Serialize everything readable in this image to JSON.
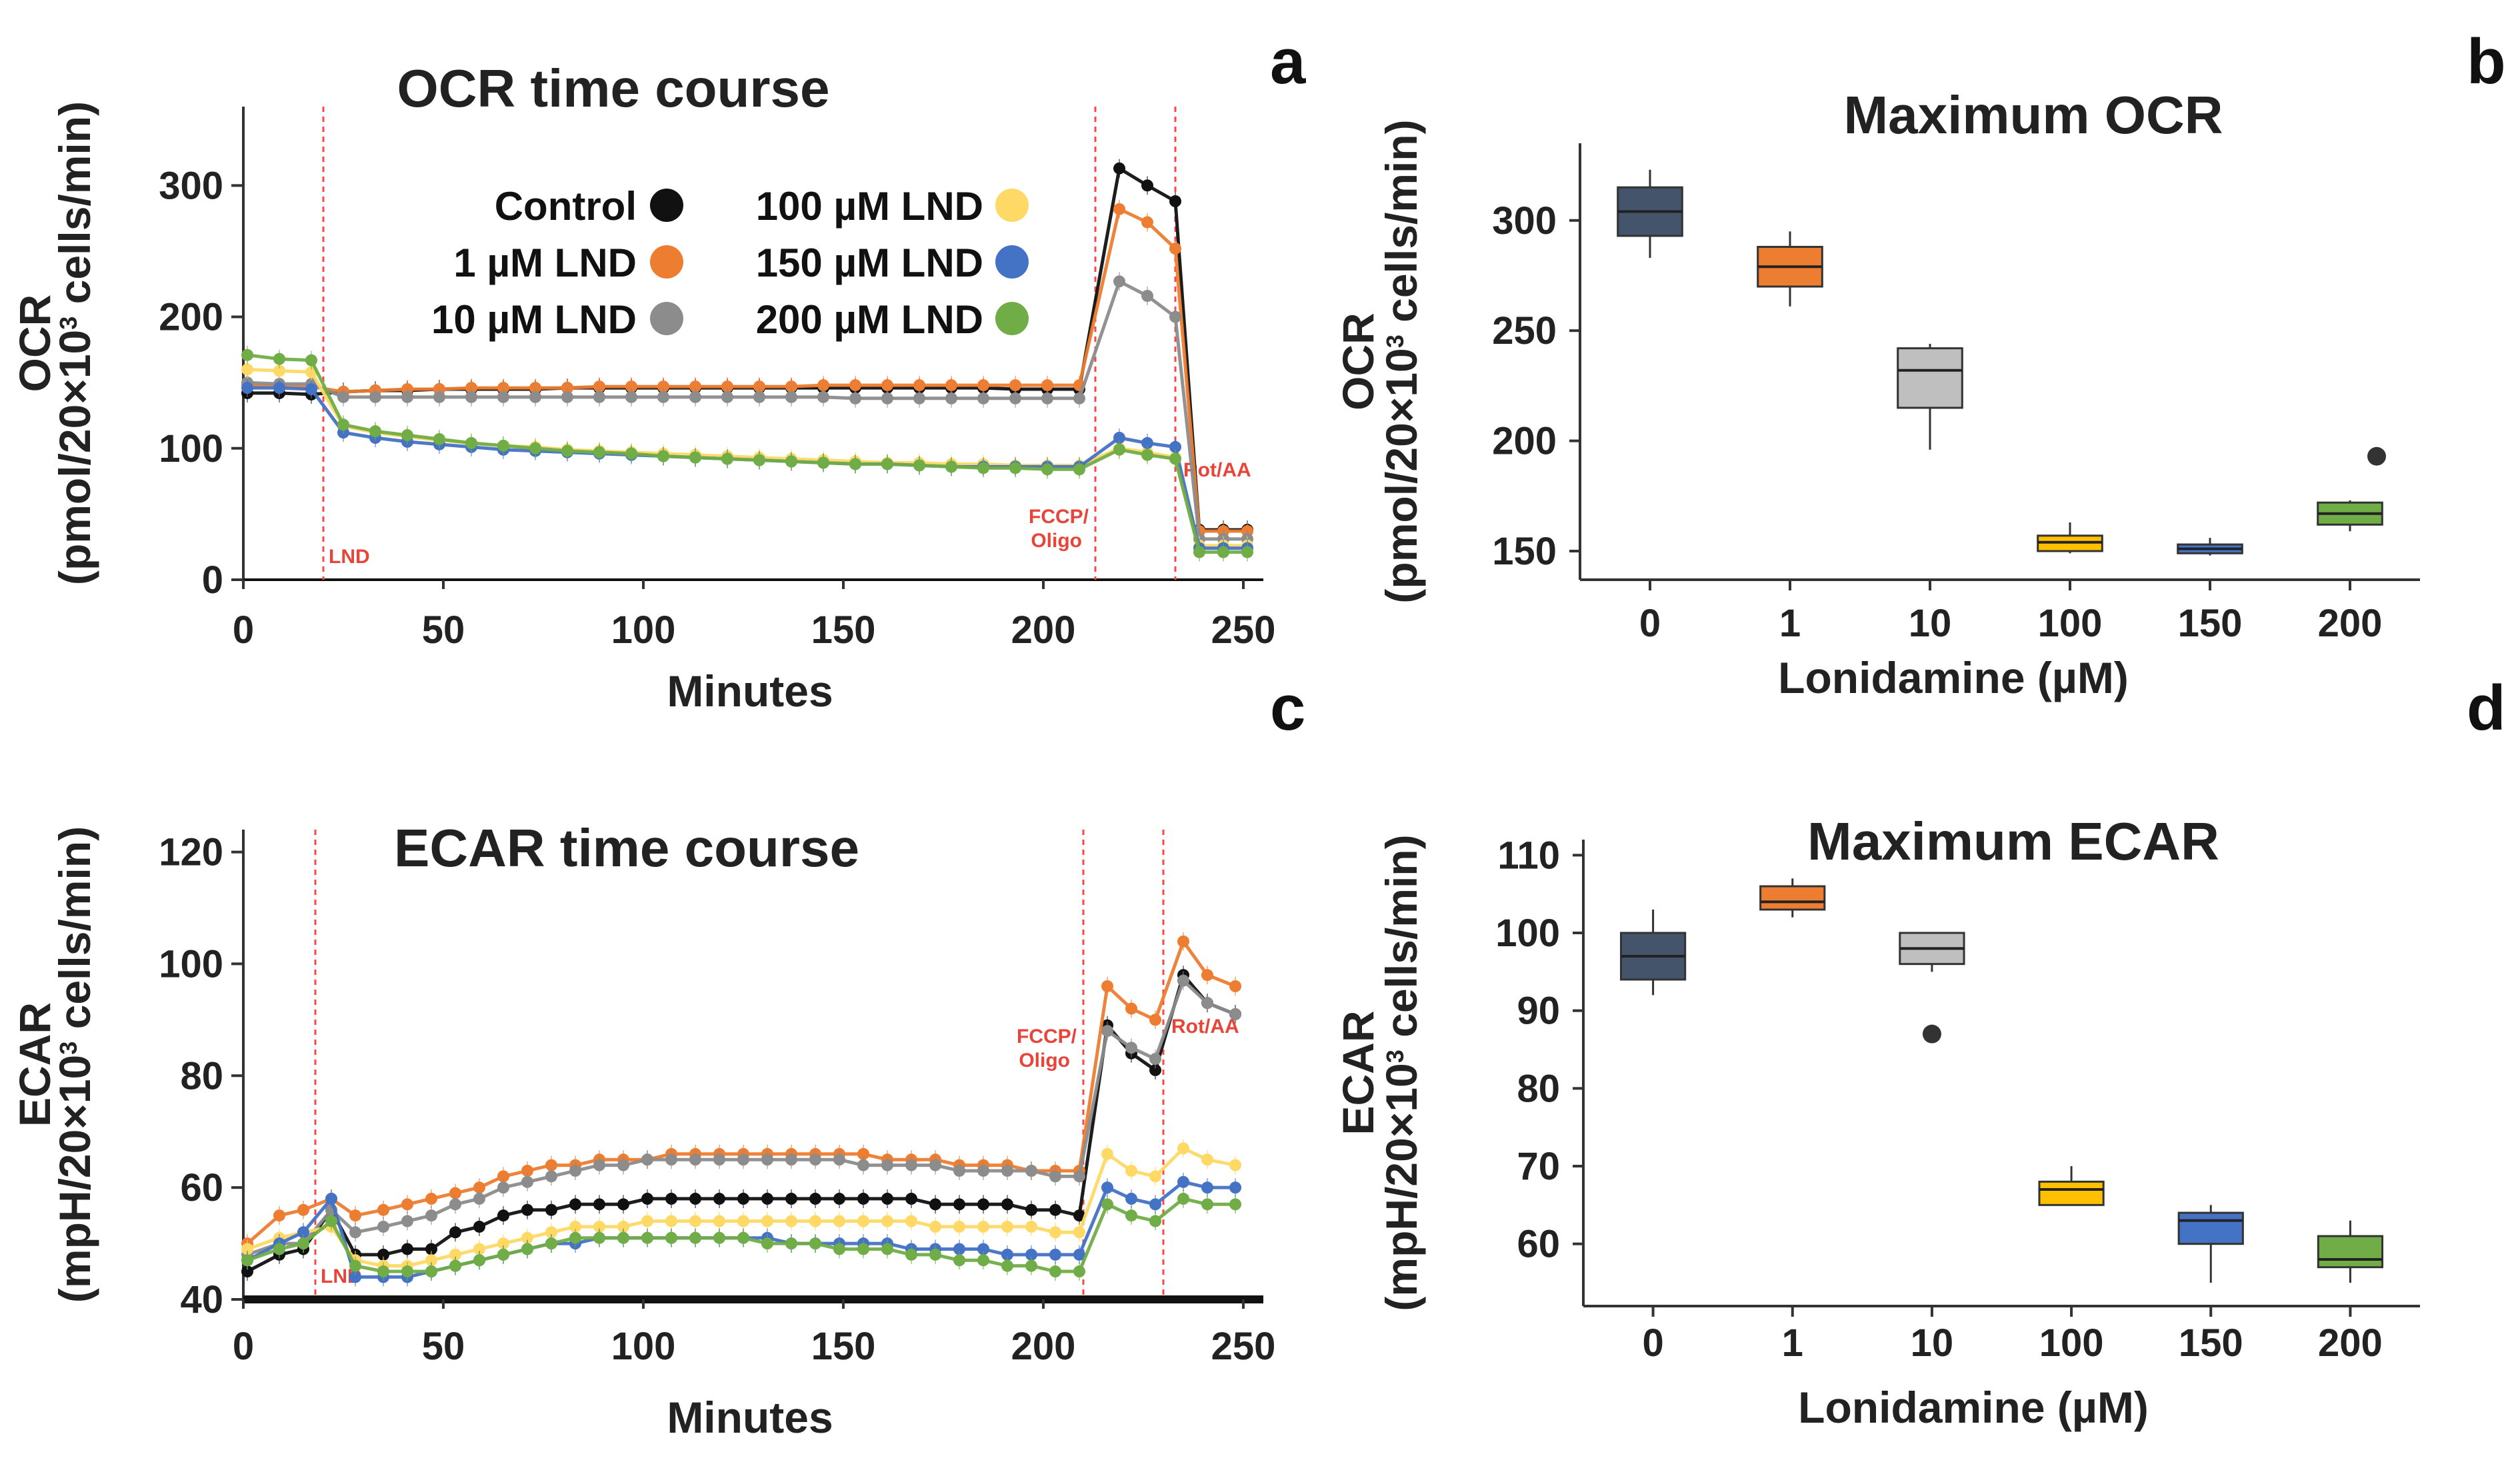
{
  "colors": {
    "control": "#111111",
    "lnd1": "#ed7d31",
    "lnd10": "#8c8c8c",
    "lnd100": "#ffd966",
    "lnd150": "#4472c4",
    "lnd200": "#70ad47",
    "marker": "#ff4444",
    "box_colors": [
      "#44546a",
      "#ed7d31",
      "#bfbfbf",
      "#ffc000",
      "#4472c4",
      "#70ad47"
    ]
  },
  "panels": {
    "a": "a",
    "b": "b",
    "c": "c",
    "d": "d"
  },
  "chart_data": [
    {
      "id": "ocr_time",
      "type": "line",
      "title": "OCR time course",
      "xlabel": "Minutes",
      "ylabel_main": "OCR",
      "ylabel_sub_pre": "(pmol/20×10",
      "ylabel_sub_sup": "3",
      "ylabel_sub_post": " cells/min)",
      "xlim": [
        0,
        255
      ],
      "ylim": [
        0,
        360
      ],
      "xticks": [
        0,
        50,
        100,
        150,
        200,
        250
      ],
      "yticks": [
        0,
        100,
        200,
        300
      ],
      "x": [
        1,
        9,
        17,
        25,
        33,
        41,
        49,
        57,
        65,
        73,
        81,
        89,
        97,
        105,
        113,
        121,
        129,
        137,
        145,
        153,
        161,
        169,
        177,
        185,
        193,
        201,
        209,
        219,
        226,
        233,
        239,
        245,
        251
      ],
      "markers": [
        {
          "x": 20,
          "label": "LND"
        },
        {
          "x": 213,
          "label": "FCCP/Oligo"
        },
        {
          "x": 233,
          "label": "Rot/AA"
        }
      ],
      "legend": [
        "Control",
        "1 µM LND",
        "10 µM LND",
        "100 µM LND",
        "150 µM LND",
        "200 µM LND"
      ],
      "series": [
        {
          "name": "Control",
          "key": "control",
          "values": [
            142,
            142,
            141,
            143,
            144,
            144,
            145,
            145,
            145,
            145,
            146,
            146,
            146,
            146,
            146,
            146,
            146,
            146,
            146,
            146,
            146,
            146,
            146,
            146,
            145,
            145,
            145,
            313,
            300,
            288,
            38,
            38,
            38
          ]
        },
        {
          "name": "1 µM LND",
          "key": "lnd1",
          "values": [
            148,
            148,
            147,
            143,
            144,
            145,
            145,
            146,
            146,
            146,
            146,
            147,
            147,
            147,
            147,
            147,
            147,
            147,
            148,
            148,
            148,
            148,
            148,
            148,
            148,
            148,
            148,
            282,
            272,
            252,
            37,
            37,
            37
          ]
        },
        {
          "name": "10 µM LND",
          "key": "lnd10",
          "values": [
            150,
            149,
            149,
            139,
            139,
            139,
            139,
            139,
            139,
            139,
            139,
            139,
            139,
            139,
            139,
            139,
            139,
            139,
            139,
            138,
            138,
            138,
            138,
            138,
            138,
            138,
            138,
            227,
            216,
            200,
            31,
            31,
            31
          ]
        },
        {
          "name": "100 µM LND",
          "key": "lnd100",
          "values": [
            160,
            159,
            158,
            117,
            112,
            109,
            106,
            104,
            102,
            101,
            99,
            98,
            97,
            96,
            95,
            94,
            93,
            92,
            91,
            90,
            89,
            89,
            88,
            88,
            87,
            87,
            87,
            100,
            97,
            93,
            26,
            26,
            26
          ]
        },
        {
          "name": "150 µM LND",
          "key": "lnd150",
          "values": [
            146,
            146,
            145,
            112,
            108,
            105,
            103,
            101,
            99,
            98,
            97,
            96,
            95,
            94,
            93,
            92,
            91,
            90,
            89,
            88,
            88,
            87,
            86,
            86,
            86,
            86,
            86,
            108,
            104,
            101,
            24,
            24,
            24
          ]
        },
        {
          "name": "200 µM LND",
          "key": "lnd200",
          "values": [
            171,
            168,
            167,
            118,
            113,
            110,
            107,
            104,
            102,
            100,
            98,
            97,
            96,
            94,
            93,
            92,
            91,
            90,
            89,
            88,
            88,
            87,
            86,
            85,
            85,
            84,
            84,
            99,
            95,
            92,
            21,
            21,
            21
          ]
        }
      ]
    },
    {
      "id": "ocr_max",
      "type": "box",
      "title": "Maximum OCR",
      "xlabel": "Lonidamine (µM)",
      "ylabel_main": "OCR",
      "ylabel_sub_pre": "(pmol/20×10",
      "ylabel_sub_sup": "3",
      "ylabel_sub_post": " cells/min)",
      "ylim": [
        137,
        335
      ],
      "yticks": [
        150,
        200,
        250,
        300
      ],
      "categories": [
        "0",
        "1",
        "10",
        "100",
        "150",
        "200"
      ],
      "boxes": [
        {
          "min": 283,
          "q1": 293,
          "median": 304,
          "q3": 315,
          "max": 323,
          "outliers": []
        },
        {
          "min": 261,
          "q1": 270,
          "median": 279,
          "q3": 288,
          "max": 295,
          "outliers": []
        },
        {
          "min": 196,
          "q1": 215,
          "median": 232,
          "q3": 242,
          "max": 244,
          "outliers": []
        },
        {
          "min": 149,
          "q1": 150,
          "median": 154,
          "q3": 157,
          "max": 163,
          "outliers": []
        },
        {
          "min": 148,
          "q1": 149,
          "median": 151,
          "q3": 153,
          "max": 156,
          "outliers": []
        },
        {
          "min": 159,
          "q1": 162,
          "median": 167,
          "q3": 172,
          "max": 173,
          "outliers": [
            193
          ]
        }
      ]
    },
    {
      "id": "ecar_time",
      "type": "line",
      "title": "ECAR time course",
      "xlabel": "Minutes",
      "ylabel_main": "ECAR",
      "ylabel_sub_pre": "(mpH/20×10",
      "ylabel_sub_sup": "3",
      "ylabel_sub_post": " cells/min)",
      "xlim": [
        0,
        255
      ],
      "ylim": [
        40,
        124
      ],
      "xticks": [
        0,
        50,
        100,
        150,
        200,
        250
      ],
      "yticks": [
        40,
        60,
        80,
        100,
        120
      ],
      "x": [
        1,
        9,
        15,
        22,
        28,
        35,
        41,
        47,
        53,
        59,
        65,
        71,
        77,
        83,
        89,
        95,
        101,
        107,
        113,
        119,
        125,
        131,
        137,
        143,
        149,
        155,
        161,
        167,
        173,
        179,
        185,
        191,
        197,
        203,
        209,
        216,
        222,
        228,
        235,
        241,
        248
      ],
      "markers": [
        {
          "x": 18,
          "label": "LND"
        },
        {
          "x": 210,
          "label": "FCCP/Oligo"
        },
        {
          "x": 230,
          "label": "Rot/AA"
        }
      ],
      "legend": [],
      "series": [
        {
          "name": "Control",
          "key": "control",
          "values": [
            45,
            48,
            49,
            56,
            48,
            48,
            49,
            49,
            52,
            53,
            55,
            56,
            56,
            57,
            57,
            57,
            58,
            58,
            58,
            58,
            58,
            58,
            58,
            58,
            58,
            58,
            58,
            58,
            57,
            57,
            57,
            57,
            56,
            56,
            55,
            89,
            84,
            81,
            98,
            93,
            91
          ]
        },
        {
          "name": "1 µM LND",
          "key": "lnd1",
          "values": [
            50,
            55,
            56,
            58,
            55,
            56,
            57,
            58,
            59,
            60,
            62,
            63,
            64,
            64,
            65,
            65,
            65,
            66,
            66,
            66,
            66,
            66,
            66,
            66,
            66,
            66,
            65,
            65,
            65,
            64,
            64,
            64,
            63,
            63,
            63,
            96,
            92,
            90,
            104,
            98,
            96
          ]
        },
        {
          "name": "10 µM LND",
          "key": "lnd10",
          "values": [
            48,
            50,
            50,
            56,
            52,
            53,
            54,
            55,
            57,
            58,
            60,
            61,
            62,
            63,
            64,
            64,
            65,
            65,
            65,
            65,
            65,
            65,
            65,
            65,
            65,
            64,
            64,
            64,
            64,
            63,
            63,
            63,
            63,
            62,
            62,
            88,
            85,
            83,
            97,
            93,
            91
          ]
        },
        {
          "name": "100 µM LND",
          "key": "lnd100",
          "values": [
            49,
            51,
            52,
            53,
            47,
            46,
            46,
            47,
            48,
            49,
            50,
            51,
            52,
            53,
            53,
            53,
            54,
            54,
            54,
            54,
            54,
            54,
            54,
            54,
            54,
            54,
            54,
            54,
            53,
            53,
            53,
            53,
            53,
            52,
            52,
            66,
            63,
            62,
            67,
            65,
            64
          ]
        },
        {
          "name": "150 µM LND",
          "key": "lnd150",
          "values": [
            47,
            50,
            52,
            58,
            44,
            44,
            44,
            45,
            46,
            47,
            48,
            49,
            50,
            50,
            51,
            51,
            51,
            51,
            51,
            51,
            51,
            51,
            50,
            50,
            50,
            50,
            50,
            49,
            49,
            49,
            49,
            48,
            48,
            48,
            48,
            60,
            58,
            57,
            61,
            60,
            60
          ]
        },
        {
          "name": "200 µM LND",
          "key": "lnd200",
          "values": [
            47,
            49,
            50,
            54,
            46,
            45,
            45,
            45,
            46,
            47,
            48,
            49,
            50,
            51,
            51,
            51,
            51,
            51,
            51,
            51,
            51,
            50,
            50,
            50,
            49,
            49,
            49,
            48,
            48,
            47,
            47,
            46,
            46,
            45,
            45,
            57,
            55,
            54,
            58,
            57,
            57
          ]
        }
      ]
    },
    {
      "id": "ecar_max",
      "type": "box",
      "title": "Maximum ECAR",
      "xlabel": "Lonidamine (µM)",
      "ylabel_main": "ECAR",
      "ylabel_sub_pre": "(mpH/20×10",
      "ylabel_sub_sup": "3",
      "ylabel_sub_post": " cells/min)",
      "ylim": [
        52,
        112
      ],
      "yticks": [
        60,
        70,
        80,
        90,
        100,
        110
      ],
      "categories": [
        "0",
        "1",
        "10",
        "100",
        "150",
        "200"
      ],
      "boxes": [
        {
          "min": 92,
          "q1": 94,
          "median": 97,
          "q3": 100,
          "max": 103,
          "outliers": []
        },
        {
          "min": 102,
          "q1": 103,
          "median": 104,
          "q3": 106,
          "max": 107,
          "outliers": []
        },
        {
          "min": 95,
          "q1": 96,
          "median": 98,
          "q3": 100,
          "max": 100,
          "outliers": [
            87
          ]
        },
        {
          "min": 65,
          "q1": 65,
          "median": 67,
          "q3": 68,
          "max": 70,
          "outliers": []
        },
        {
          "min": 55,
          "q1": 60,
          "median": 63,
          "q3": 64,
          "max": 65,
          "outliers": []
        },
        {
          "min": 55,
          "q1": 57,
          "median": 58,
          "q3": 61,
          "max": 63,
          "outliers": []
        }
      ]
    }
  ]
}
